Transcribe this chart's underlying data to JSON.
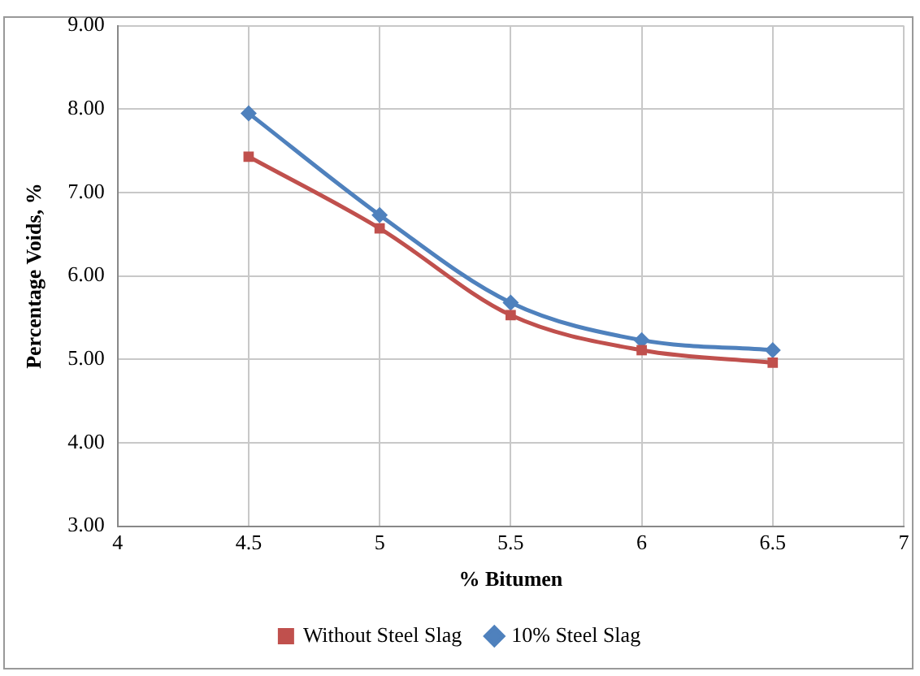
{
  "chart_data": {
    "type": "line",
    "xlabel": "% Bitumen",
    "ylabel": "Percentage Voids, %",
    "x": [
      4.5,
      5,
      5.5,
      6,
      6.5
    ],
    "xlim": [
      4,
      7
    ],
    "xticks": [
      4,
      4.5,
      5,
      5.5,
      6,
      6.5,
      7
    ],
    "ylim": [
      3,
      9
    ],
    "yticks": [
      {
        "value": 3,
        "label": "3.00"
      },
      {
        "value": 4,
        "label": "4.00"
      },
      {
        "value": 5,
        "label": "5.00"
      },
      {
        "value": 6,
        "label": "6.00"
      },
      {
        "value": 7,
        "label": "7.00"
      },
      {
        "value": 8,
        "label": "8.00"
      },
      {
        "value": 9,
        "label": "9.00"
      }
    ],
    "series": [
      {
        "name": "Without Steel Slag",
        "color": "#c0504d",
        "marker": "square",
        "values": [
          7.43,
          6.57,
          5.53,
          5.11,
          4.96
        ]
      },
      {
        "name": "10% Steel Slag",
        "color": "#4f81bd",
        "marker": "diamond",
        "values": [
          7.95,
          6.73,
          5.68,
          5.23,
          5.11
        ]
      }
    ],
    "grid": true,
    "legend": "bottom"
  }
}
